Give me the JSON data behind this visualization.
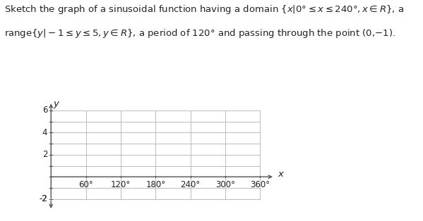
{
  "xlim": [
    -15,
    400
  ],
  "ylim": [
    -3.2,
    7.2
  ],
  "xticks": [
    60,
    120,
    180,
    240,
    300,
    360
  ],
  "yticks": [
    -2,
    2,
    4,
    6
  ],
  "xlabel": "x",
  "ylabel": "y",
  "grid_color": "#bbbbbb",
  "axis_color": "#555555",
  "text_color": "#222222",
  "background_color": "#ffffff",
  "grid_xmin": 0,
  "grid_xmax": 360,
  "grid_ymin": -2,
  "grid_ymax": 6,
  "font_size_ticks": 8.5,
  "font_size_label": 9.5,
  "font_size_title": 9.5,
  "line1": "Sketch the graph of a sinusoidal function having a domain ",
  "line1_math": "{x|0°≤ x ≤ 240°, x ∈ R}",
  "line1_end": ", a",
  "line2": "range{y|−1≤ y ≤ 5, y ∈ R}, a period of 120° and passing through the point (0,−1)."
}
